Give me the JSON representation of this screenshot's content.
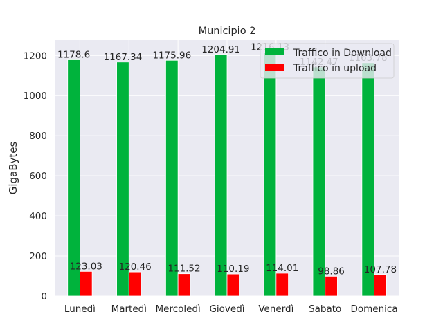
{
  "chart_data": {
    "type": "bar",
    "title": "Municipio 2",
    "xlabel": "",
    "ylabel": "GigaBytes",
    "categories": [
      "Lunedì",
      "Martedì",
      "Mercoledì",
      "Giovedì",
      "Venerdì",
      "Sabato",
      "Domenica"
    ],
    "series": [
      {
        "name": "Traffico in Download",
        "color": "#00b33c",
        "values": [
          1178.6,
          1167.34,
          1175.96,
          1204.91,
          1216.13,
          1142.47,
          1163.78
        ],
        "data_labels": [
          "1178.6",
          "1167.34",
          "1175.96",
          "1204.91",
          "1216.13",
          "1142.47",
          "1163.78"
        ]
      },
      {
        "name": "Traffico in upload",
        "color": "#ff0000",
        "values": [
          123.03,
          120.46,
          111.52,
          110.19,
          114.01,
          98.86,
          107.78
        ],
        "data_labels": [
          "123.03",
          "120.46",
          "111.52",
          "110.19",
          "114.01",
          "98.86",
          "107.78"
        ]
      }
    ],
    "yticks": [
      0,
      200,
      400,
      600,
      800,
      1000,
      1200
    ],
    "ylim": [
      0,
      1276.94
    ],
    "grid": true,
    "legend_position": "top-right",
    "background": "#eaeaf2"
  }
}
